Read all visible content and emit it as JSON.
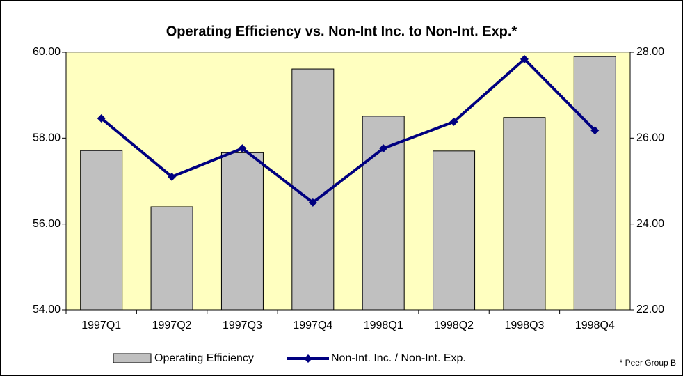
{
  "chart_data": {
    "type": "bar-line",
    "title": "Operating Efficiency  vs.  Non-Int Inc. to Non-Int. Exp.*",
    "footnote": "* Peer Group B",
    "categories": [
      "1997Q1",
      "1997Q2",
      "1997Q3",
      "1997Q4",
      "1998Q1",
      "1998Q2",
      "1998Q3",
      "1998Q4"
    ],
    "series": [
      {
        "name": "Operating Efficiency",
        "type": "bar",
        "color": "#c0c0c0",
        "values": [
          57.71,
          56.4,
          57.66,
          59.61,
          58.51,
          57.7,
          58.48,
          59.9
        ]
      },
      {
        "name": "Non-Int. Inc. / Non-Int. Exp.",
        "type": "line",
        "axis": "y2",
        "color": "#000080",
        "values": [
          26.46,
          25.1,
          25.76,
          24.5,
          25.76,
          26.38,
          27.84,
          26.18
        ]
      }
    ],
    "ylim": [
      54,
      60
    ],
    "yticks": [
      {
        "value": 54,
        "label": "54.00"
      },
      {
        "value": 56,
        "label": "56.00"
      },
      {
        "value": 58,
        "label": "58.00"
      },
      {
        "value": 60,
        "label": "60.00"
      }
    ],
    "y2lim": [
      22,
      28
    ],
    "y2ticks": [
      {
        "value": 22,
        "label": "22.00"
      },
      {
        "value": 24,
        "label": "24.00"
      },
      {
        "value": 26,
        "label": "26.00"
      },
      {
        "value": 28,
        "label": "28.00"
      }
    ],
    "plot_background": "#ffffc0",
    "legend": "bottom"
  }
}
